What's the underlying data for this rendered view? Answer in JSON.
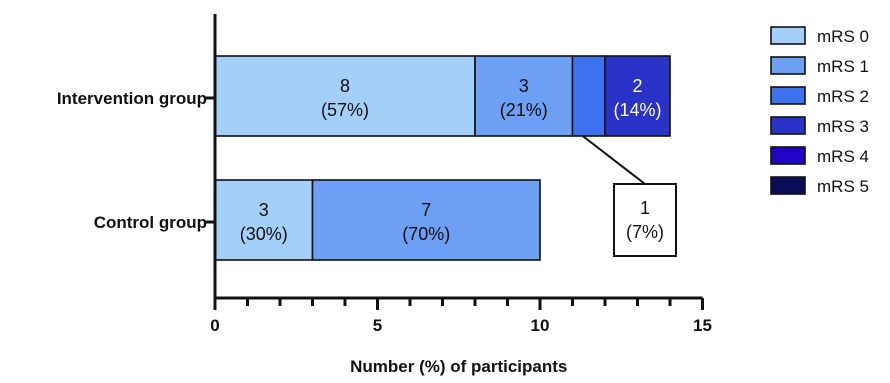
{
  "chart_data": {
    "type": "bar",
    "orientation": "horizontal",
    "stacked": true,
    "title": "",
    "xlabel": "Number (%) of participants",
    "ylabel": "",
    "xlim": [
      0,
      15
    ],
    "xticks": [
      "0",
      "5",
      "10",
      "15"
    ],
    "grid": false,
    "legend_position": "right",
    "categories": [
      "Intervention group",
      "Control group"
    ],
    "series": [
      {
        "name": "mRS 0",
        "color": "#a4cff8",
        "values": [
          8,
          3
        ],
        "labels": [
          "8\n(57%)",
          "3\n(30%)"
        ]
      },
      {
        "name": "mRS 1",
        "color": "#6d9ff2",
        "values": [
          3,
          7
        ],
        "labels": [
          "3\n(21%)",
          "7\n(70%)"
        ]
      },
      {
        "name": "mRS 2",
        "color": "#3f72ef",
        "values": [
          1,
          0
        ],
        "labels": [
          "",
          ""
        ]
      },
      {
        "name": "mRS 3",
        "color": "#2a33c8",
        "values": [
          2,
          0
        ],
        "labels": [
          "2\n(14%)",
          ""
        ]
      },
      {
        "name": "mRS 4",
        "color": "#1e05c6",
        "values": [
          0,
          0
        ],
        "labels": [
          "",
          ""
        ]
      },
      {
        "name": "mRS 5",
        "color": "#0b0c55",
        "values": [
          0,
          0
        ],
        "labels": [
          "",
          ""
        ]
      }
    ],
    "annotations": [
      {
        "text": "1\n(7%)",
        "category": "Intervention group",
        "series": "mRS 2"
      }
    ]
  }
}
